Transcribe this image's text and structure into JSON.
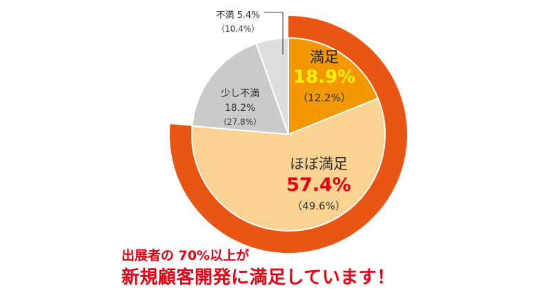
{
  "chart_data": {
    "type": "pie",
    "title": "",
    "slices": [
      {
        "label": "満足",
        "value": 18.9,
        "value_text": "18.9%",
        "prev_text": "（12.2%）",
        "color": "#f39800",
        "value_color": "#fff100"
      },
      {
        "label": "ほぼ満足",
        "value": 57.4,
        "value_text": "57.4%",
        "prev_text": "（49.6%）",
        "color": "#fad291",
        "value_color": "#e60012"
      },
      {
        "label": "少し不満",
        "value": 18.2,
        "value_text": "18.2%",
        "prev_text": "（27.8%）",
        "color": "#c9caca",
        "value_color": "#333333"
      },
      {
        "label": "不満",
        "value": 5.4,
        "value_text": "5.4%",
        "prev_text": "（10.4%）",
        "color": "#dcdddd",
        "value_color": "#333333"
      }
    ],
    "highlight": {
      "covers": [
        "満足",
        "ほぼ満足"
      ],
      "total": 76.3,
      "color": "#e95513"
    }
  },
  "headline": {
    "line1": "出展者の 70%以上が",
    "line2": "新規顧客開発に満足しています！"
  }
}
